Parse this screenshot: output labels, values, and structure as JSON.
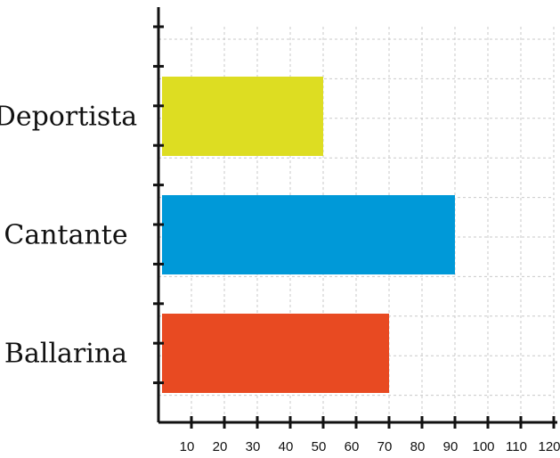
{
  "chart_data": {
    "type": "bar",
    "orientation": "horizontal",
    "categories": [
      "Deportista",
      "Cantante",
      "Ballarina"
    ],
    "values": [
      50,
      90,
      70
    ],
    "colors": [
      "#dddd22",
      "#0099d8",
      "#e84a22"
    ],
    "xlim": [
      0,
      120
    ],
    "xticks": [
      10,
      20,
      30,
      40,
      50,
      60,
      70,
      80,
      90,
      100,
      110,
      120
    ],
    "grid": true,
    "title": "",
    "xlabel": "",
    "ylabel": ""
  }
}
